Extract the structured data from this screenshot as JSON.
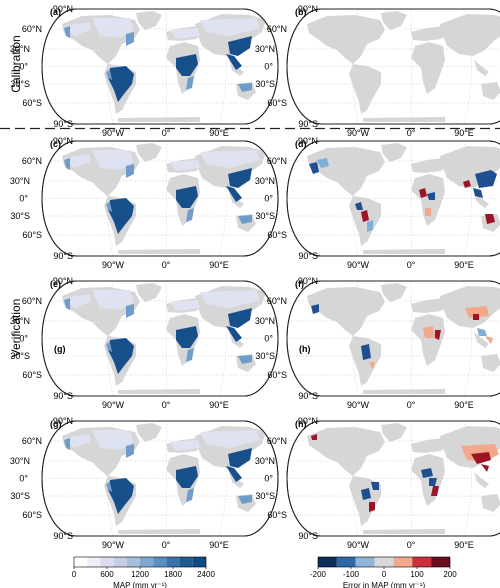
{
  "row_labels": {
    "calibration": "Calibration",
    "verification": "Verification"
  },
  "panels": [
    {
      "id": "a",
      "label": "(a)",
      "kind": "map",
      "col": 0,
      "row": 0
    },
    {
      "id": "b",
      "label": "(b)",
      "kind": "error",
      "col": 1,
      "row": 0
    },
    {
      "id": "c",
      "label": "(c)",
      "kind": "map",
      "col": 0,
      "row": 1
    },
    {
      "id": "d",
      "label": "(d)",
      "kind": "error",
      "col": 1,
      "row": 1
    },
    {
      "id": "e",
      "label": "(e)",
      "kind": "map",
      "col": 0,
      "row": 2,
      "inner_label": "(g)"
    },
    {
      "id": "f",
      "label": "(f)",
      "kind": "error",
      "col": 1,
      "row": 2,
      "inner_label": "(h)"
    },
    {
      "id": "g",
      "label": "(g)",
      "kind": "map",
      "col": 0,
      "row": 3
    },
    {
      "id": "h",
      "label": "(h)",
      "kind": "error",
      "col": 1,
      "row": 3
    }
  ],
  "lat_labels": [
    "90°N",
    "60°N",
    "30°N",
    "0°",
    "30°S",
    "60°S",
    "90°S"
  ],
  "lon_labels": [
    "90°W",
    "0°",
    "90°E"
  ],
  "colorbar_map": {
    "title": "MAP (mm yr⁻¹)",
    "ticks": [
      "0",
      "600",
      "1200",
      "1800",
      "2400"
    ],
    "colors": [
      "#ffffff",
      "#f0eef6",
      "#dcdcee",
      "#c2cde6",
      "#a4bedc",
      "#7fa7cf",
      "#5b8fc0",
      "#3a73ab",
      "#1f5a93",
      "#0f4a82"
    ]
  },
  "colorbar_error": {
    "title": "Error in MAP (mm yr⁻¹)",
    "ticks": [
      "-200",
      "-100",
      "0",
      "100",
      "200"
    ],
    "colors": [
      "#0b2e5a",
      "#2f68a8",
      "#8fb6d8",
      "#d9d9d9",
      "#f2a88c",
      "#c9303a",
      "#6b0f1f"
    ]
  },
  "colors": {
    "land_gray": "#d6d6d6",
    "frame": "#222222",
    "blue_light": "#dfe2f1",
    "blue_mid": "#6f9ccb",
    "blue_dark": "#174f8b",
    "red_light": "#f2a88c",
    "red_dark": "#9b1527",
    "err_blue_dark": "#1f4f8e",
    "err_blue_light": "#7fb0d8"
  }
}
